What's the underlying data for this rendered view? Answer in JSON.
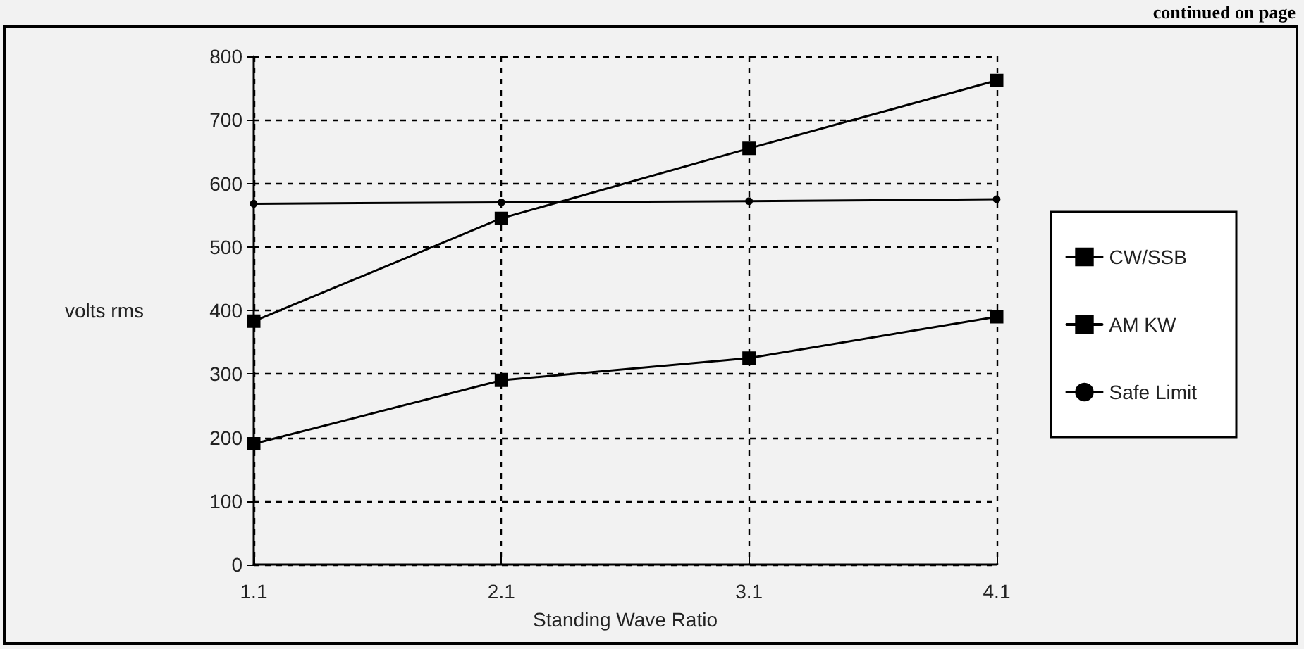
{
  "chart_data": {
    "type": "line",
    "xlabel": "Standing Wave Ratio",
    "ylabel": "volts rms",
    "annotations": [
      "continued on page"
    ],
    "categories": [
      "1.1",
      "2.1",
      "3.1",
      "4.1"
    ],
    "series": [
      {
        "name": "CW/SSB",
        "color": "#000000",
        "marker": "square",
        "values": [
          190,
          290,
          325,
          390
        ]
      },
      {
        "name": "AM KW",
        "color": "#000000",
        "marker": "square",
        "values": [
          383,
          545,
          655,
          762
        ]
      },
      {
        "name": "Safe Limit",
        "color": "#000000",
        "marker": "circle",
        "values": [
          568,
          570,
          572,
          575
        ]
      }
    ],
    "ylim": [
      0,
      800
    ],
    "yticks": [
      0,
      100,
      200,
      300,
      400,
      500,
      600,
      700,
      800
    ],
    "grid": true,
    "legend": "right",
    "line_style": "solid"
  }
}
